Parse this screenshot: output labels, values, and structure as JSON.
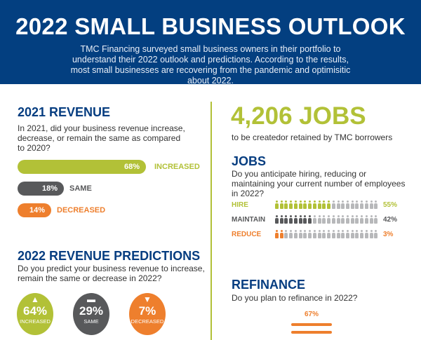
{
  "header": {
    "title": "2022 SMALL BUSINESS OUTLOOK",
    "subtitle": "TMC Financing surveyed small business owners in their portfolio to understand their 2022 outlook and predictions. According to the results, most small businesses are recovering from the pandemic and optimisitic about 2022."
  },
  "colors": {
    "blue": "#033f80",
    "green": "#b2c137",
    "gray": "#58595b",
    "orange": "#ee7f2d",
    "light_gray": "#b7b8ba"
  },
  "revenue_2021": {
    "title": "2021 REVENUE",
    "question": "In 2021, did your business revenue increase, decrease, or remain the same as compared to 2020?",
    "bars": [
      {
        "label": "INCREASED",
        "value": "68%",
        "percent": 68
      },
      {
        "label": "SAME",
        "value": "18%",
        "percent": 18
      },
      {
        "label": "DECREASED",
        "value": "14%",
        "percent": 14
      }
    ]
  },
  "predictions": {
    "title": "2022 REVENUE PREDICTIONS",
    "question": "Do you predict your business revenue to increase, remain the same or decrease in 2022?",
    "items": [
      {
        "icon": "triangle-up-icon",
        "glyph": "▲",
        "value": "64%",
        "label": "INCREASED"
      },
      {
        "icon": "minus-icon",
        "glyph": "▬",
        "value": "29%",
        "label": "SAME"
      },
      {
        "icon": "triangle-down-icon",
        "glyph": "▼",
        "value": "7%",
        "label": "DECREASED"
      }
    ]
  },
  "jobs_stat": {
    "number": "4,206 JOBS",
    "caption": "to be createdor retained by TMC borrowers"
  },
  "jobs": {
    "title": "JOBS",
    "question": "Do you anticipate hiring, reducing or maintaining your current number of employees in 2022?",
    "rows": [
      {
        "label": "HIRE",
        "value": "55%",
        "filled": 12,
        "total": 22
      },
      {
        "label": "MAINTAIN",
        "value": "42%",
        "filled": 8,
        "total": 22
      },
      {
        "label": "REDUCE",
        "value": "3%",
        "filled": 2,
        "total": 22
      }
    ]
  },
  "refinance": {
    "title": "REFINANCE",
    "question": "Do you plan to refinance in 2022?",
    "value": "67%"
  }
}
